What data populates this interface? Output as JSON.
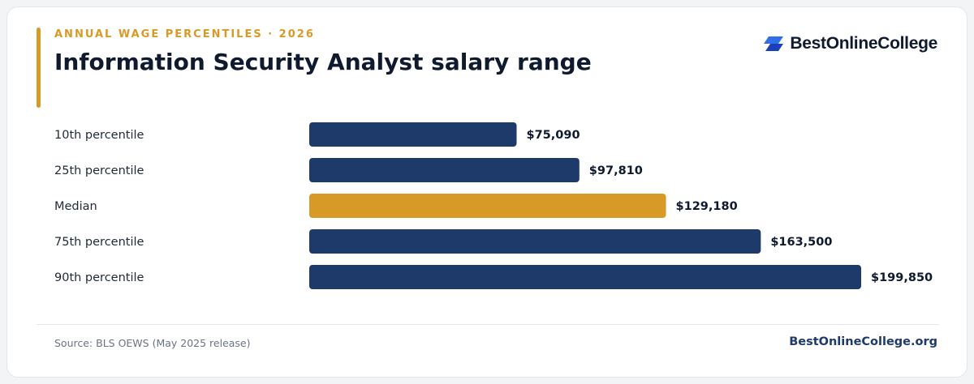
{
  "header": {
    "eyebrow": "ANNUAL WAGE PERCENTILES · 2026",
    "title": "Information Security Analyst salary range"
  },
  "brand": {
    "logo_text": "BestOnlineCollege",
    "logo_icon": "stacked-parallelogram-icon",
    "logo_color_top": "#2f6fe8",
    "logo_color_bottom": "#1b3fb8"
  },
  "colors": {
    "bar_default": "#1e3a6b",
    "bar_highlight": "#d89a26",
    "accent": "#d89a26"
  },
  "chart_data": {
    "type": "bar",
    "orientation": "horizontal",
    "categories": [
      "10th percentile",
      "25th percentile",
      "Median",
      "75th percentile",
      "90th percentile"
    ],
    "values": [
      75090,
      97810,
      129180,
      163500,
      199850
    ],
    "value_labels": [
      "$75,090",
      "$97,810",
      "$129,180",
      "$163,500",
      "$199,850"
    ],
    "highlight_index": 2,
    "xlim": [
      0,
      199850
    ],
    "grid": false,
    "legend": "none"
  },
  "footer": {
    "source": "Source: BLS OEWS (May 2025 release)",
    "site": "BestOnlineCollege.org"
  }
}
